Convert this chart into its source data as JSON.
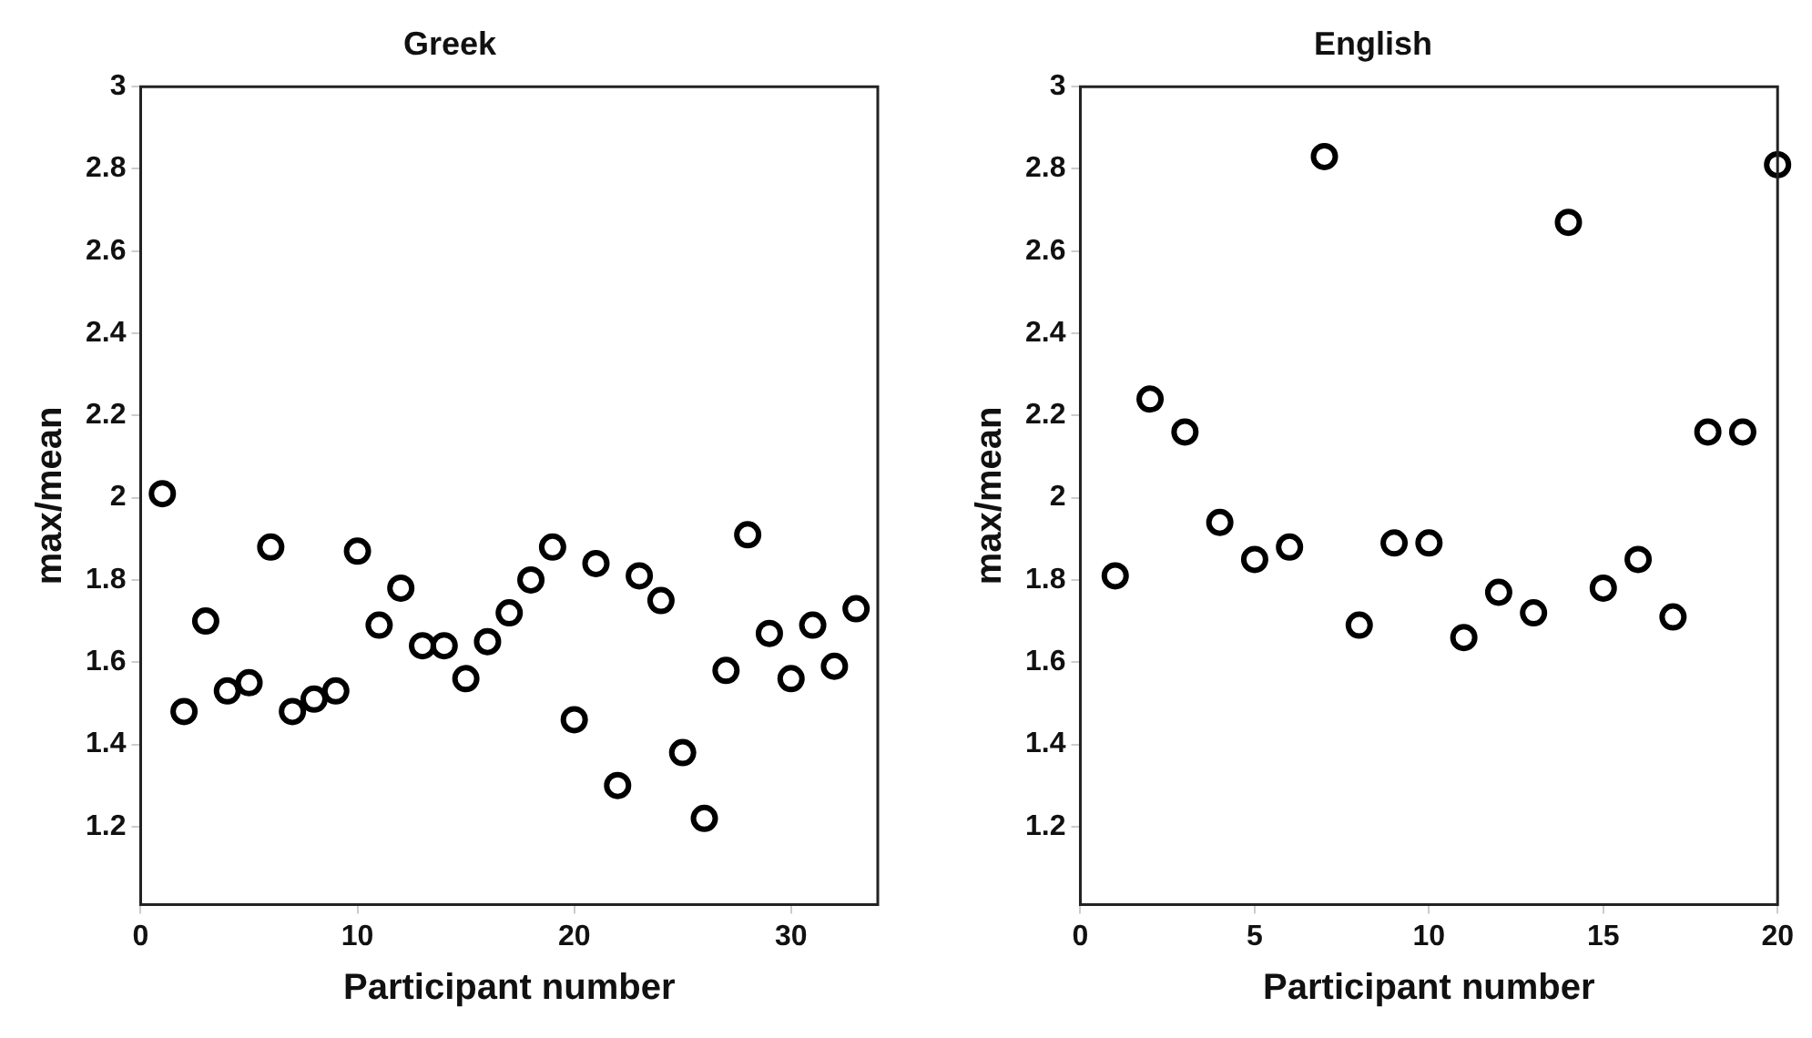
{
  "chart_data": [
    {
      "type": "scatter",
      "title": "Greek",
      "xlabel": "Participant number",
      "ylabel": "max/mean",
      "marker": "circle",
      "xlim": [
        0,
        34
      ],
      "xticks": [
        0,
        10,
        20,
        30
      ],
      "ylim": [
        1.01,
        3
      ],
      "yticks": [
        1.2,
        1.4,
        1.6,
        1.8,
        2,
        2.2,
        2.4,
        2.6,
        2.8,
        3
      ],
      "x": [
        1,
        2,
        3,
        4,
        5,
        6,
        7,
        8,
        9,
        10,
        11,
        12,
        13,
        14,
        15,
        16,
        17,
        18,
        19,
        20,
        21,
        22,
        23,
        24,
        25,
        26,
        27,
        28,
        29,
        30,
        31,
        32,
        33
      ],
      "series": [
        {
          "color": "#000000",
          "values": [
            2.01,
            1.48,
            1.7,
            1.53,
            1.55,
            1.88,
            1.48,
            1.51,
            1.53,
            1.87,
            1.69,
            1.78,
            1.64,
            1.64,
            1.56,
            1.65,
            1.72,
            1.8,
            1.88,
            1.46,
            1.84,
            1.3,
            1.81,
            1.75,
            1.38,
            1.22,
            1.58,
            1.91,
            1.67,
            1.56,
            1.69,
            1.59,
            1.73
          ]
        }
      ]
    },
    {
      "type": "scatter",
      "title": "English",
      "xlabel": "Participant number",
      "ylabel": "max/mean",
      "marker": "circle",
      "xlim": [
        0,
        20
      ],
      "xticks": [
        0,
        5,
        10,
        15,
        20
      ],
      "ylim": [
        1.01,
        3
      ],
      "yticks": [
        1.2,
        1.4,
        1.6,
        1.8,
        2,
        2.2,
        2.4,
        2.6,
        2.8,
        3
      ],
      "x": [
        1,
        2,
        3,
        4,
        5,
        6,
        7,
        8,
        9,
        10,
        11,
        12,
        13,
        14,
        15,
        16,
        17,
        18,
        19,
        20
      ],
      "series": [
        {
          "color": "#000000",
          "values": [
            1.81,
            2.24,
            2.16,
            1.94,
            1.85,
            1.88,
            2.83,
            1.69,
            1.89,
            1.89,
            1.66,
            1.77,
            1.72,
            2.67,
            1.78,
            1.85,
            1.71,
            2.16,
            2.16,
            2.81
          ]
        }
      ]
    }
  ]
}
